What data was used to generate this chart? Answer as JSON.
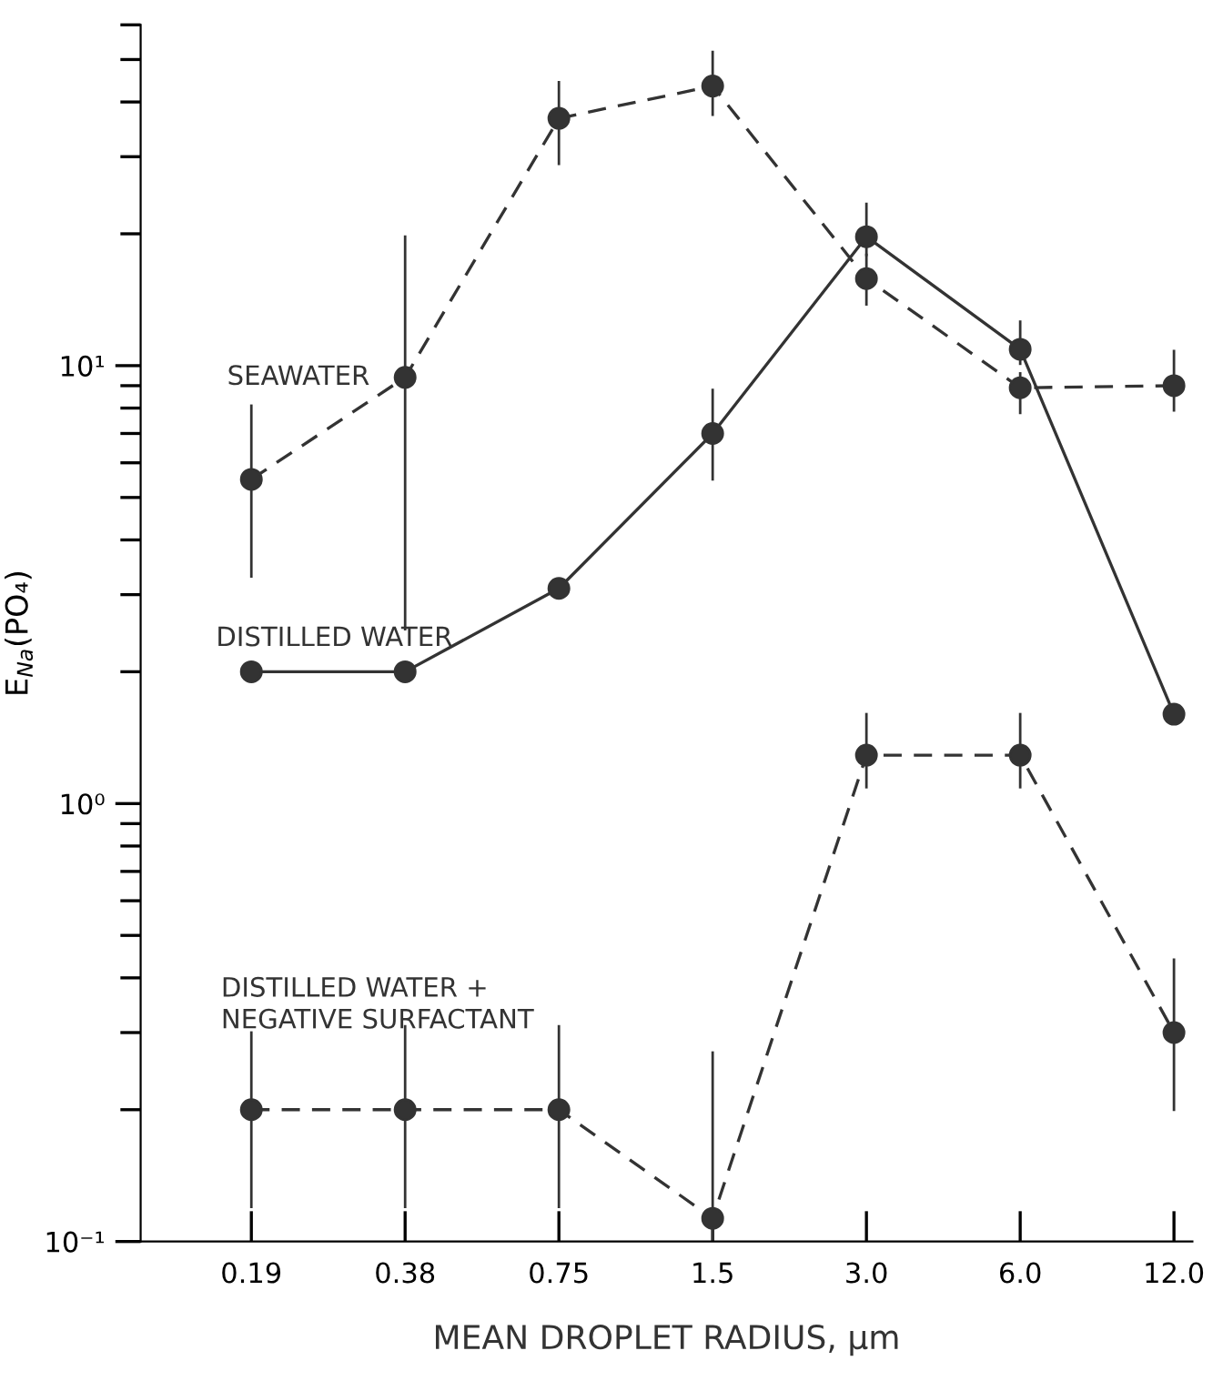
{
  "chart_data": {
    "type": "line",
    "xlabel": "MEAN DROPLET RADIUS, μm",
    "ylabel": "E$_{Na}$(PO₄)",
    "categories": [
      "0.19",
      "0.38",
      "0.75",
      "1.5",
      "3.0",
      "6.0",
      "12.0"
    ],
    "log": "y",
    "ylim": [
      0.1,
      60
    ],
    "yticks": [
      {
        "value": 0.1,
        "label": "10⁻¹"
      },
      {
        "value": 0.2,
        "label": null
      },
      {
        "value": 0.3,
        "label": null
      },
      {
        "value": 0.4,
        "label": null
      },
      {
        "value": 0.5,
        "label": null
      },
      {
        "value": 0.6,
        "label": null
      },
      {
        "value": 0.7,
        "label": null
      },
      {
        "value": 0.8,
        "label": null
      },
      {
        "value": 0.9,
        "label": null
      },
      {
        "value": 1,
        "label": "10⁰"
      },
      {
        "value": 2,
        "label": null
      },
      {
        "value": 3,
        "label": null
      },
      {
        "value": 4,
        "label": null
      },
      {
        "value": 5,
        "label": null
      },
      {
        "value": 6,
        "label": null
      },
      {
        "value": 7,
        "label": null
      },
      {
        "value": 8,
        "label": null
      },
      {
        "value": 9,
        "label": null
      },
      {
        "value": 10,
        "label": "10¹"
      },
      {
        "value": 20,
        "label": null
      },
      {
        "value": 30,
        "label": null
      },
      {
        "value": 40,
        "label": null
      },
      {
        "value": 50,
        "label": null
      },
      {
        "value": 60,
        "label": null
      }
    ],
    "grid": false,
    "marker": "circle",
    "series": [
      {
        "name": "SEAWATER",
        "color": "#333333",
        "line_style": "dashed",
        "values": [
          5.5,
          9.4,
          36.7,
          43.5,
          15.8,
          8.9,
          9.0
        ],
        "errors": [
          [
            3.3,
            8.1
          ],
          [
            2.5,
            19.7
          ],
          [
            28.9,
            44.4
          ],
          [
            37.4,
            52
          ],
          [
            13.8,
            17.9
          ],
          [
            7.8,
            9.6
          ],
          [
            7.9,
            10.8
          ]
        ]
      },
      {
        "name": "DISTILLED WATER",
        "color": "#333333",
        "line_style": "solid",
        "values": [
          2.0,
          2.0,
          3.1,
          7.0,
          19.7,
          10.9,
          1.6
        ],
        "errors": [
          null,
          null,
          null,
          [
            5.5,
            8.8
          ],
          [
            17.9,
            23.4
          ],
          [
            10.1,
            12.6
          ],
          null
        ]
      },
      {
        "name": "DISTILLED WATER +\nNEGATIVE SURFACTANT",
        "color": "#333333",
        "line_style": "dashed",
        "values": [
          0.2,
          0.2,
          0.2,
          0.113,
          1.29,
          1.29,
          0.3
        ],
        "errors": [
          [
            0.12,
            0.3
          ],
          [
            0.12,
            0.31
          ],
          [
            0.12,
            0.31
          ],
          [
            0.1,
            0.27
          ],
          [
            1.09,
            1.6
          ],
          [
            1.09,
            1.6
          ],
          [
            0.2,
            0.44
          ]
        ]
      }
    ]
  }
}
